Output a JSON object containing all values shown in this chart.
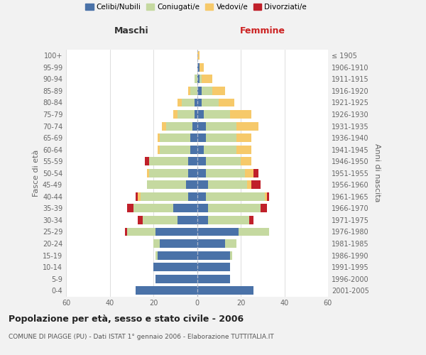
{
  "age_groups": [
    "0-4",
    "5-9",
    "10-14",
    "15-19",
    "20-24",
    "25-29",
    "30-34",
    "35-39",
    "40-44",
    "45-49",
    "50-54",
    "55-59",
    "60-64",
    "65-69",
    "70-74",
    "75-79",
    "80-84",
    "85-89",
    "90-94",
    "95-99",
    "100+"
  ],
  "birth_years": [
    "2001-2005",
    "1996-2000",
    "1991-1995",
    "1986-1990",
    "1981-1985",
    "1976-1980",
    "1971-1975",
    "1966-1970",
    "1961-1965",
    "1956-1960",
    "1951-1955",
    "1946-1950",
    "1941-1945",
    "1936-1940",
    "1931-1935",
    "1926-1930",
    "1921-1925",
    "1916-1920",
    "1911-1915",
    "1906-1910",
    "≤ 1905"
  ],
  "male_celibe": [
    28,
    19,
    20,
    18,
    17,
    19,
    9,
    11,
    4,
    5,
    4,
    4,
    3,
    3,
    2,
    1,
    1,
    0,
    0,
    0,
    0
  ],
  "male_coniugato": [
    0,
    0,
    0,
    1,
    3,
    13,
    16,
    18,
    22,
    18,
    18,
    18,
    14,
    14,
    12,
    8,
    6,
    3,
    1,
    0,
    0
  ],
  "male_vedovo": [
    0,
    0,
    0,
    0,
    0,
    0,
    0,
    0,
    1,
    0,
    1,
    0,
    1,
    1,
    2,
    2,
    2,
    1,
    0,
    0,
    0
  ],
  "male_divorziato": [
    0,
    0,
    0,
    0,
    0,
    1,
    2,
    3,
    1,
    0,
    0,
    2,
    0,
    0,
    0,
    0,
    0,
    0,
    0,
    0,
    0
  ],
  "female_nubile": [
    26,
    15,
    15,
    15,
    13,
    19,
    5,
    5,
    4,
    5,
    4,
    4,
    3,
    4,
    4,
    3,
    2,
    2,
    1,
    1,
    0
  ],
  "female_coniugata": [
    0,
    0,
    0,
    1,
    5,
    14,
    19,
    24,
    27,
    18,
    18,
    16,
    15,
    14,
    14,
    12,
    8,
    5,
    1,
    0,
    0
  ],
  "female_vedova": [
    0,
    0,
    0,
    0,
    0,
    0,
    0,
    0,
    1,
    2,
    4,
    5,
    7,
    7,
    10,
    10,
    7,
    6,
    5,
    2,
    1
  ],
  "female_divorziata": [
    0,
    0,
    0,
    0,
    0,
    0,
    2,
    3,
    1,
    4,
    2,
    0,
    0,
    0,
    0,
    0,
    0,
    0,
    0,
    0,
    0
  ],
  "color_celibe": "#4a72a8",
  "color_coniugato": "#c5d9a0",
  "color_vedovo": "#f6c96a",
  "color_divorziato": "#c0202a",
  "xlim": 60,
  "title": "Popolazione per età, sesso e stato civile - 2006",
  "subtitle": "COMUNE DI PIAGGE (PU) - Dati ISTAT 1° gennaio 2006 - Elaborazione TUTTITALIA.IT",
  "label_maschi": "Maschi",
  "label_femmine": "Femmine",
  "ylabel_left": "Fasce di età",
  "ylabel_right": "Anni di nascita",
  "legend_labels": [
    "Celibi/Nubili",
    "Coniugati/e",
    "Vedovi/e",
    "Divorziati/e"
  ],
  "bg_color": "#f2f2f2",
  "plot_bg": "#ffffff",
  "grid_color": "#d0d0d0"
}
